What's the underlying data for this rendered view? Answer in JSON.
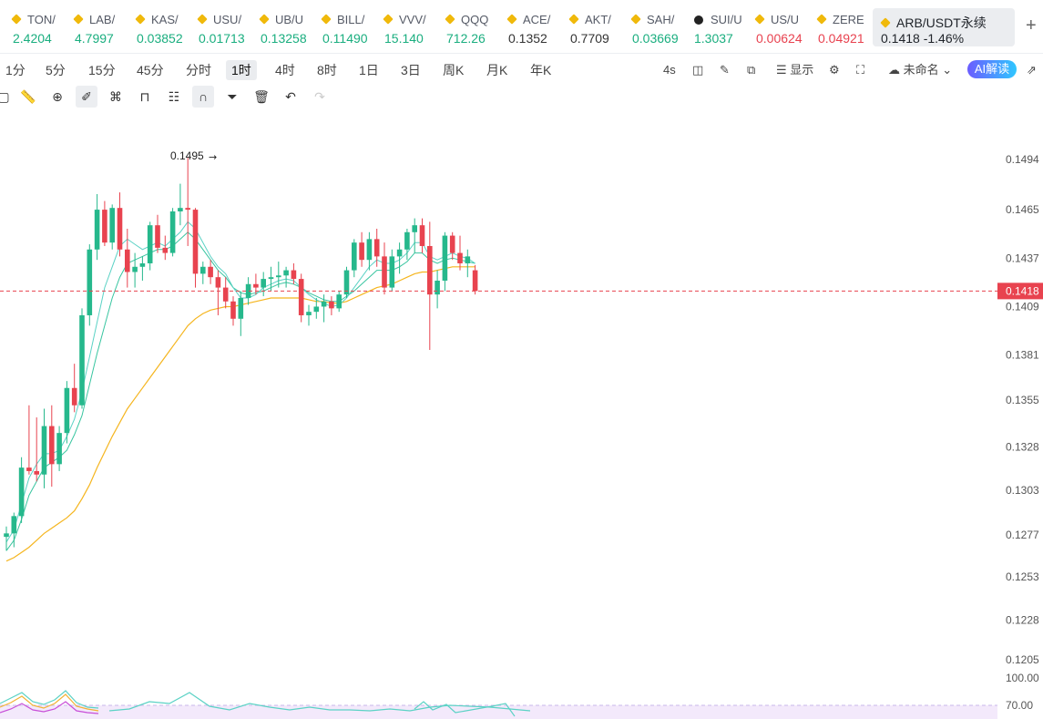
{
  "ticker": [
    {
      "symbol": "TON/",
      "price": "2.4204",
      "color": "#1aae7f"
    },
    {
      "symbol": "LAB/",
      "price": "4.7997",
      "color": "#1aae7f"
    },
    {
      "symbol": "KAS/",
      "price": "0.03852",
      "color": "#1aae7f"
    },
    {
      "symbol": "USU/",
      "price": "0.01713",
      "color": "#1aae7f"
    },
    {
      "symbol": "UB/U",
      "price": "0.13258",
      "color": "#1aae7f"
    },
    {
      "symbol": "BILL/",
      "price": "0.11490",
      "color": "#1aae7f"
    },
    {
      "symbol": "VVV/",
      "price": "15.140",
      "color": "#1aae7f"
    },
    {
      "symbol": "QQQ",
      "price": "712.26",
      "color": "#1aae7f"
    },
    {
      "symbol": "ACE/",
      "price": "0.1352",
      "color": "#333333"
    },
    {
      "symbol": "AKT/",
      "price": "0.7709",
      "color": "#333333"
    },
    {
      "symbol": "SAH/",
      "price": "0.03669",
      "color": "#1aae7f"
    },
    {
      "symbol": "SUI/U",
      "price": "1.3037",
      "color": "#1aae7f",
      "dark_icon": true
    },
    {
      "symbol": "US/U",
      "price": "0.00624",
      "color": "#e8424f"
    },
    {
      "symbol": "ZERE",
      "price": "0.04921",
      "color": "#e8424f"
    }
  ],
  "active_pair": {
    "symbol": "ARB/USDT永续",
    "price": "0.1418",
    "change": "-1.46%"
  },
  "add_symbol": "+",
  "intervals": [
    "1分",
    "5分",
    "15分",
    "45分",
    "分时",
    "1时",
    "4时",
    "8时",
    "1日",
    "3日",
    "周K",
    "月K",
    "年K"
  ],
  "active_interval_index": 5,
  "toolbar": {
    "countdown": "4s",
    "display_label": "显示",
    "layout_name": "未命名",
    "ai_label": "AI解读"
  },
  "chart_data": {
    "type": "candlestick",
    "y_ticks": [
      "0.1494",
      "0.1465",
      "0.1437",
      "0.1409",
      "0.1381",
      "0.1355",
      "0.1328",
      "0.1303",
      "0.1277",
      "0.1253",
      "0.1228",
      "0.1205"
    ],
    "current_price": "0.1418",
    "high_annotation": "0.1495",
    "indicator_ticks": [
      "100.00",
      "70.00"
    ],
    "candles": [
      {
        "o": 0.1276,
        "h": 0.1282,
        "l": 0.1268,
        "c": 0.1278
      },
      {
        "o": 0.1278,
        "h": 0.129,
        "l": 0.127,
        "c": 0.1288
      },
      {
        "o": 0.1288,
        "h": 0.1322,
        "l": 0.1284,
        "c": 0.1316
      },
      {
        "o": 0.1316,
        "h": 0.1352,
        "l": 0.1312,
        "c": 0.1314
      },
      {
        "o": 0.1314,
        "h": 0.1345,
        "l": 0.1308,
        "c": 0.1312
      },
      {
        "o": 0.1312,
        "h": 0.135,
        "l": 0.1304,
        "c": 0.134
      },
      {
        "o": 0.134,
        "h": 0.1352,
        "l": 0.1305,
        "c": 0.1318
      },
      {
        "o": 0.1318,
        "h": 0.134,
        "l": 0.1314,
        "c": 0.1336
      },
      {
        "o": 0.1336,
        "h": 0.1366,
        "l": 0.133,
        "c": 0.1362
      },
      {
        "o": 0.1362,
        "h": 0.1376,
        "l": 0.1348,
        "c": 0.1352
      },
      {
        "o": 0.1352,
        "h": 0.1408,
        "l": 0.135,
        "c": 0.1404
      },
      {
        "o": 0.1404,
        "h": 0.1445,
        "l": 0.1398,
        "c": 0.1442
      },
      {
        "o": 0.1442,
        "h": 0.1474,
        "l": 0.1436,
        "c": 0.1465
      },
      {
        "o": 0.1465,
        "h": 0.147,
        "l": 0.1444,
        "c": 0.1446
      },
      {
        "o": 0.1446,
        "h": 0.1468,
        "l": 0.1442,
        "c": 0.1466
      },
      {
        "o": 0.1466,
        "h": 0.1475,
        "l": 0.1438,
        "c": 0.1442
      },
      {
        "o": 0.1442,
        "h": 0.1454,
        "l": 0.142,
        "c": 0.1429
      },
      {
        "o": 0.1429,
        "h": 0.144,
        "l": 0.142,
        "c": 0.1432
      },
      {
        "o": 0.1432,
        "h": 0.1438,
        "l": 0.1424,
        "c": 0.1434
      },
      {
        "o": 0.1434,
        "h": 0.1458,
        "l": 0.143,
        "c": 0.1456
      },
      {
        "o": 0.1456,
        "h": 0.1462,
        "l": 0.144,
        "c": 0.1443
      },
      {
        "o": 0.1443,
        "h": 0.145,
        "l": 0.1436,
        "c": 0.144
      },
      {
        "o": 0.144,
        "h": 0.1466,
        "l": 0.1438,
        "c": 0.1464
      },
      {
        "o": 0.1464,
        "h": 0.148,
        "l": 0.1456,
        "c": 0.1466
      },
      {
        "o": 0.1466,
        "h": 0.1495,
        "l": 0.1444,
        "c": 0.1465
      },
      {
        "o": 0.1465,
        "h": 0.1466,
        "l": 0.142,
        "c": 0.1428
      },
      {
        "o": 0.1428,
        "h": 0.1435,
        "l": 0.1422,
        "c": 0.1432
      },
      {
        "o": 0.1432,
        "h": 0.1436,
        "l": 0.1422,
        "c": 0.1426
      },
      {
        "o": 0.1426,
        "h": 0.143,
        "l": 0.1404,
        "c": 0.142
      },
      {
        "o": 0.142,
        "h": 0.1426,
        "l": 0.1408,
        "c": 0.1412
      },
      {
        "o": 0.1412,
        "h": 0.1415,
        "l": 0.1398,
        "c": 0.1402
      },
      {
        "o": 0.1402,
        "h": 0.1418,
        "l": 0.1392,
        "c": 0.1414
      },
      {
        "o": 0.1414,
        "h": 0.1426,
        "l": 0.141,
        "c": 0.1422
      },
      {
        "o": 0.1422,
        "h": 0.1428,
        "l": 0.1416,
        "c": 0.142
      },
      {
        "o": 0.142,
        "h": 0.1429,
        "l": 0.1415,
        "c": 0.1425
      },
      {
        "o": 0.1425,
        "h": 0.1432,
        "l": 0.1418,
        "c": 0.1426
      },
      {
        "o": 0.1426,
        "h": 0.1435,
        "l": 0.142,
        "c": 0.1427
      },
      {
        "o": 0.1427,
        "h": 0.1432,
        "l": 0.142,
        "c": 0.143
      },
      {
        "o": 0.143,
        "h": 0.1434,
        "l": 0.1422,
        "c": 0.1425
      },
      {
        "o": 0.1425,
        "h": 0.1428,
        "l": 0.14,
        "c": 0.1404
      },
      {
        "o": 0.1404,
        "h": 0.141,
        "l": 0.1398,
        "c": 0.1406
      },
      {
        "o": 0.1406,
        "h": 0.1414,
        "l": 0.1402,
        "c": 0.1409
      },
      {
        "o": 0.1409,
        "h": 0.1416,
        "l": 0.14,
        "c": 0.1412
      },
      {
        "o": 0.1412,
        "h": 0.1415,
        "l": 0.1404,
        "c": 0.1408
      },
      {
        "o": 0.1408,
        "h": 0.1418,
        "l": 0.1406,
        "c": 0.1416
      },
      {
        "o": 0.1416,
        "h": 0.1432,
        "l": 0.1414,
        "c": 0.143
      },
      {
        "o": 0.143,
        "h": 0.1448,
        "l": 0.1426,
        "c": 0.1446
      },
      {
        "o": 0.1446,
        "h": 0.1452,
        "l": 0.1432,
        "c": 0.1436
      },
      {
        "o": 0.1436,
        "h": 0.1452,
        "l": 0.143,
        "c": 0.1448
      },
      {
        "o": 0.1448,
        "h": 0.1454,
        "l": 0.1432,
        "c": 0.1438
      },
      {
        "o": 0.1438,
        "h": 0.1446,
        "l": 0.1416,
        "c": 0.142
      },
      {
        "o": 0.142,
        "h": 0.1442,
        "l": 0.1418,
        "c": 0.1438
      },
      {
        "o": 0.1438,
        "h": 0.1446,
        "l": 0.1428,
        "c": 0.1442
      },
      {
        "o": 0.1442,
        "h": 0.1454,
        "l": 0.1436,
        "c": 0.1452
      },
      {
        "o": 0.1452,
        "h": 0.146,
        "l": 0.144,
        "c": 0.1456
      },
      {
        "o": 0.1456,
        "h": 0.146,
        "l": 0.144,
        "c": 0.1444
      },
      {
        "o": 0.1444,
        "h": 0.1458,
        "l": 0.1384,
        "c": 0.1416
      },
      {
        "o": 0.1416,
        "h": 0.143,
        "l": 0.1408,
        "c": 0.1424
      },
      {
        "o": 0.1424,
        "h": 0.1452,
        "l": 0.1418,
        "c": 0.145
      },
      {
        "o": 0.145,
        "h": 0.1452,
        "l": 0.1436,
        "c": 0.144
      },
      {
        "o": 0.144,
        "h": 0.145,
        "l": 0.143,
        "c": 0.1434
      },
      {
        "o": 0.1434,
        "h": 0.1442,
        "l": 0.1426,
        "c": 0.1438
      },
      {
        "o": 0.143,
        "h": 0.1433,
        "l": 0.1416,
        "c": 0.1418
      }
    ],
    "ma_short": [
      0.1273,
      0.128,
      0.1295,
      0.131,
      0.1318,
      0.1324,
      0.1324,
      0.1326,
      0.1334,
      0.1344,
      0.136,
      0.138,
      0.14,
      0.142,
      0.1432,
      0.1444,
      0.1448,
      0.1445,
      0.1442,
      0.1444,
      0.1446,
      0.1444,
      0.1448,
      0.1452,
      0.1458,
      0.1454,
      0.1446,
      0.1438,
      0.1432,
      0.1428,
      0.142,
      0.1414,
      0.1414,
      0.1416,
      0.142,
      0.1422,
      0.1424,
      0.1425,
      0.1424,
      0.142,
      0.1416,
      0.1413,
      0.1411,
      0.1409,
      0.141,
      0.1414,
      0.142,
      0.1426,
      0.1432,
      0.1436,
      0.1434,
      0.1434,
      0.1436,
      0.144,
      0.1446,
      0.1446,
      0.1438,
      0.1436,
      0.1438,
      0.144,
      0.1438,
      0.1437,
      0.1434
    ],
    "ma_mid": [
      0.1268,
      0.1274,
      0.1286,
      0.13,
      0.1308,
      0.1316,
      0.1319,
      0.1322,
      0.1326,
      0.1335,
      0.1346,
      0.1364,
      0.1382,
      0.1398,
      0.1414,
      0.1426,
      0.1434,
      0.1436,
      0.1438,
      0.144,
      0.1442,
      0.1442,
      0.1444,
      0.1448,
      0.1452,
      0.1448,
      0.1442,
      0.1436,
      0.143,
      0.1426,
      0.142,
      0.1417,
      0.1416,
      0.1417,
      0.1418,
      0.142,
      0.1422,
      0.1423,
      0.1422,
      0.142,
      0.1417,
      0.1415,
      0.1413,
      0.1412,
      0.1412,
      0.1415,
      0.1418,
      0.1422,
      0.1426,
      0.143,
      0.143,
      0.143,
      0.1432,
      0.1435,
      0.144,
      0.144,
      0.1436,
      0.1434,
      0.1436,
      0.1437,
      0.1436,
      0.1435,
      0.1434
    ],
    "ma_long": [
      0.1262,
      0.1264,
      0.1267,
      0.127,
      0.1274,
      0.1278,
      0.1281,
      0.1284,
      0.1287,
      0.1291,
      0.1298,
      0.1306,
      0.1316,
      0.1325,
      0.1334,
      0.1342,
      0.135,
      0.1356,
      0.1362,
      0.1368,
      0.1374,
      0.138,
      0.1386,
      0.1392,
      0.1398,
      0.1402,
      0.1405,
      0.1407,
      0.1408,
      0.1409,
      0.1409,
      0.141,
      0.1411,
      0.1412,
      0.1413,
      0.1414,
      0.1414,
      0.1414,
      0.1414,
      0.1414,
      0.1413,
      0.1412,
      0.1412,
      0.1411,
      0.1411,
      0.1412,
      0.1414,
      0.1416,
      0.1418,
      0.142,
      0.1421,
      0.1422,
      0.1424,
      0.1426,
      0.1428,
      0.1429,
      0.1429,
      0.143,
      0.1431,
      0.1432,
      0.1432,
      0.1432,
      0.1432
    ]
  }
}
